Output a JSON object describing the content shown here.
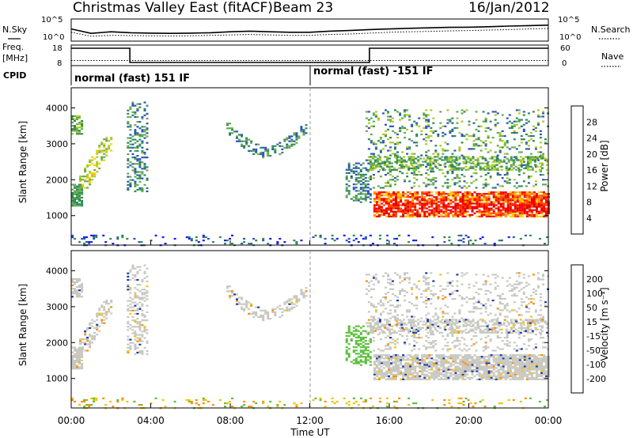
{
  "header": {
    "title": "Christmas Valley East (fitACF)",
    "beam": "Beam 23",
    "date": "16/Jan/2012"
  },
  "side_labels": {
    "nsky": "N.Sky",
    "nsearch": "N.Search",
    "freq": "Freq.",
    "freq_unit": "[MHz]",
    "nave": "Nave",
    "cpid": "CPID"
  },
  "chart_data": [
    {
      "type": "line",
      "name": "noise",
      "left_ticks": [
        "10^5",
        "10^0"
      ],
      "right_ticks": [
        "10^5",
        "10^0"
      ],
      "x_hours": [
        0,
        1,
        2,
        3,
        4,
        5,
        6,
        7,
        8,
        9,
        10,
        11,
        12,
        13,
        14,
        15,
        16,
        17,
        18,
        19,
        20,
        21,
        22,
        23,
        24
      ],
      "sky_level": [
        0.55,
        0.35,
        0.42,
        0.38,
        0.36,
        0.35,
        0.36,
        0.38,
        0.42,
        0.45,
        0.42,
        0.4,
        0.4,
        0.45,
        0.48,
        0.52,
        0.55,
        0.58,
        0.6,
        0.62,
        0.63,
        0.65,
        0.68,
        0.7,
        0.72
      ],
      "search_level": [
        0.4,
        0.22,
        0.26,
        0.25,
        0.24,
        0.23,
        0.24,
        0.26,
        0.28,
        0.3,
        0.28,
        0.26,
        0.26,
        0.3,
        0.32,
        0.36,
        0.4,
        0.42,
        0.44,
        0.46,
        0.48,
        0.5,
        0.52,
        0.55,
        0.57
      ]
    },
    {
      "type": "line",
      "name": "frequency",
      "left_ticks": [
        "18",
        "8"
      ],
      "right_ticks": [
        "60",
        "0"
      ],
      "freq_step_hours": [
        0,
        2.95,
        2.95,
        15.0,
        15.0,
        24
      ],
      "freq_step_level": [
        1,
        1,
        0,
        0,
        1,
        1
      ],
      "nave_level": 0.25
    },
    {
      "type": "table",
      "name": "cpid",
      "segments": [
        {
          "start_hour": 0,
          "end_hour": 12,
          "label": "normal (fast) 151 IF"
        },
        {
          "start_hour": 12,
          "end_hour": 24,
          "label": "normal (fast) -151 IF"
        }
      ]
    },
    {
      "type": "heatmap",
      "name": "power",
      "ylabel": "Slant Range [km]",
      "yticks": [
        1000,
        2000,
        3000,
        4000
      ],
      "ylim": [
        180,
        4560
      ],
      "xlim": [
        0,
        24
      ],
      "colorbar": {
        "label": "Power [dB]",
        "ticks": [
          "4",
          "8",
          "12",
          "16",
          "20",
          "24",
          "28"
        ],
        "colors": [
          "#1a1aff",
          "#2d55bb",
          "#2e8b57",
          "#66aa55",
          "#aacc22",
          "#ffcc00",
          "#ff8800",
          "#ff4400",
          "#ff0000",
          "#e00000"
        ]
      }
    },
    {
      "type": "heatmap",
      "name": "velocity",
      "ylabel": "Slant Range [km]",
      "yticks": [
        1000,
        2000,
        3000,
        4000
      ],
      "ylim": [
        180,
        4560
      ],
      "xlim": [
        0,
        24
      ],
      "xticks": [
        "00:00",
        "04:00",
        "08:00",
        "12:00",
        "16:00",
        "20:00",
        "00:00"
      ],
      "xlabel": "Time UT",
      "colorbar": {
        "label": "Velocity [m s⁻¹]",
        "ticks": [
          "200",
          "100",
          "50",
          "15",
          "-15",
          "-50",
          "-100",
          "-200"
        ],
        "colors": [
          "#1a3aa8",
          "#2e7d4f",
          "#5bbf3a",
          "#c8c8c0",
          "#c8c8c0",
          "#f2c200",
          "#ff8c00",
          "#ff4400",
          "#e00000"
        ]
      }
    }
  ]
}
